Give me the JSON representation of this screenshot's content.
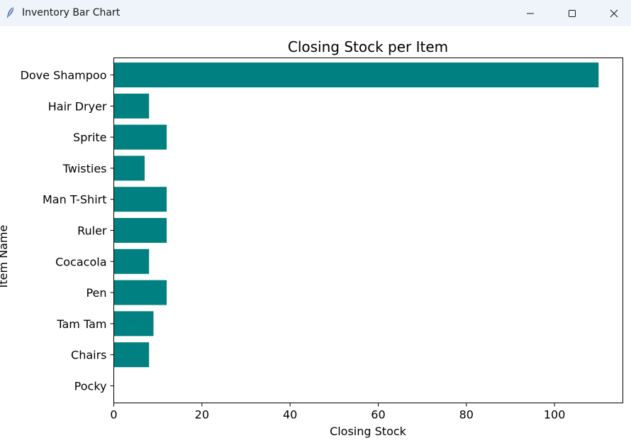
{
  "window": {
    "title": "Inventory Bar Chart",
    "icons": {
      "app": "feather-icon",
      "minimize": "minimize-icon",
      "maximize": "maximize-icon",
      "close": "close-icon"
    }
  },
  "chart_data": {
    "type": "bar",
    "orientation": "horizontal",
    "title": "Closing Stock per Item",
    "xlabel": "Closing Stock",
    "ylabel": "Item Name",
    "categories": [
      "Dove Shampoo",
      "Hair Dryer",
      "Sprite",
      "Twisties",
      "Man T-Shirt",
      "Ruler",
      "Cocacola",
      "Pen",
      "Tam Tam",
      "Chairs",
      "Pocky"
    ],
    "values": [
      110,
      8,
      12,
      7,
      12,
      12,
      8,
      12,
      9,
      8,
      0
    ],
    "xlim": [
      0,
      115.5
    ],
    "xticks": [
      0,
      20,
      40,
      60,
      80,
      100
    ],
    "bar_color": "#008080",
    "grid": false
  }
}
